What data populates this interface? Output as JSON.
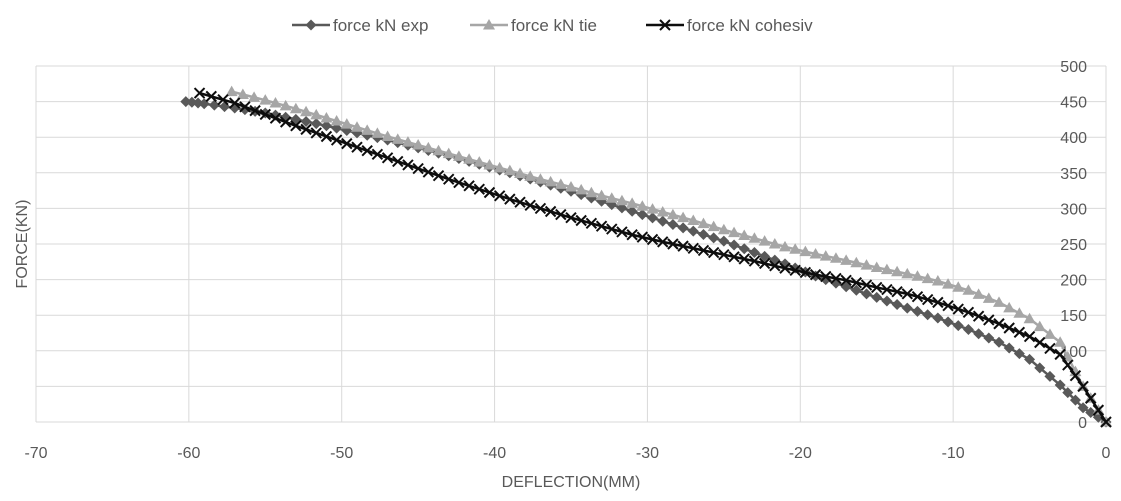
{
  "chart_data": {
    "type": "line",
    "title": "",
    "xlabel": "DEFLECTION(MM)",
    "ylabel": "FORCE(KN)",
    "xlim": [
      -70,
      0
    ],
    "ylim": [
      0,
      500
    ],
    "x_ticks": [
      -70,
      -60,
      -50,
      -40,
      -30,
      -20,
      -10,
      0
    ],
    "y_ticks": [
      0,
      50,
      100,
      150,
      200,
      250,
      300,
      350,
      400,
      450,
      500
    ],
    "x_tick_labels": [
      "-70",
      "-60",
      "-50",
      "-40",
      "-30",
      "-20",
      "-10",
      "0"
    ],
    "y_tick_labels": [
      "0",
      "",
      "100",
      "150",
      "200",
      "250",
      "300",
      "350",
      "400",
      "450",
      "500"
    ],
    "y_axis_side": "right",
    "grid": true,
    "legend_position": "top",
    "series": [
      {
        "name": "force kN exp",
        "color": "#595959",
        "marker": "diamond",
        "points": [
          [
            -60.2,
            450
          ],
          [
            -59,
            447
          ],
          [
            -57,
            441
          ],
          [
            -55,
            434
          ],
          [
            -53,
            425
          ],
          [
            -51,
            416
          ],
          [
            -49,
            406
          ],
          [
            -47,
            396
          ],
          [
            -45,
            385
          ],
          [
            -43,
            374
          ],
          [
            -41,
            362
          ],
          [
            -39,
            350
          ],
          [
            -37,
            337
          ],
          [
            -35,
            324
          ],
          [
            -33,
            310
          ],
          [
            -31,
            296
          ],
          [
            -29,
            282
          ],
          [
            -27,
            268
          ],
          [
            -25,
            254
          ],
          [
            -23,
            238
          ],
          [
            -21,
            222
          ],
          [
            -19,
            205
          ],
          [
            -17,
            190
          ],
          [
            -15,
            175
          ],
          [
            -13,
            160
          ],
          [
            -11,
            146
          ],
          [
            -9,
            130
          ],
          [
            -7,
            112
          ],
          [
            -5,
            88
          ],
          [
            -3,
            52
          ],
          [
            -1.5,
            20
          ],
          [
            0,
            0
          ]
        ]
      },
      {
        "name": "force kN tie",
        "color": "#a6a6a6",
        "marker": "triangle",
        "points": [
          [
            -57.2,
            464
          ],
          [
            -55,
            452
          ],
          [
            -53,
            440
          ],
          [
            -51,
            427
          ],
          [
            -49,
            414
          ],
          [
            -47,
            401
          ],
          [
            -45,
            389
          ],
          [
            -43,
            377
          ],
          [
            -41,
            365
          ],
          [
            -39,
            353
          ],
          [
            -37,
            341
          ],
          [
            -35,
            330
          ],
          [
            -33,
            318
          ],
          [
            -31,
            307
          ],
          [
            -29,
            295
          ],
          [
            -27,
            283
          ],
          [
            -25,
            270
          ],
          [
            -23,
            258
          ],
          [
            -21,
            246
          ],
          [
            -19,
            236
          ],
          [
            -17,
            227
          ],
          [
            -15,
            217
          ],
          [
            -13,
            208
          ],
          [
            -11,
            198
          ],
          [
            -9,
            185
          ],
          [
            -7,
            168
          ],
          [
            -5,
            145
          ],
          [
            -3,
            112
          ],
          [
            -1.5,
            50
          ],
          [
            0,
            0
          ]
        ]
      },
      {
        "name": "force kN cohesiv",
        "color": "#0d0d0d",
        "marker": "x",
        "points": [
          [
            -59.3,
            462
          ],
          [
            -57,
            448
          ],
          [
            -55,
            432
          ],
          [
            -53,
            416
          ],
          [
            -51,
            401
          ],
          [
            -49,
            386
          ],
          [
            -47,
            371
          ],
          [
            -45,
            356
          ],
          [
            -43,
            341
          ],
          [
            -41,
            327
          ],
          [
            -39,
            313
          ],
          [
            -37,
            300
          ],
          [
            -35,
            287
          ],
          [
            -33,
            275
          ],
          [
            -31,
            263
          ],
          [
            -29,
            253
          ],
          [
            -27,
            244
          ],
          [
            -25,
            235
          ],
          [
            -23,
            226
          ],
          [
            -21,
            216
          ],
          [
            -19,
            207
          ],
          [
            -17,
            199
          ],
          [
            -15,
            189
          ],
          [
            -13,
            180
          ],
          [
            -11,
            168
          ],
          [
            -9,
            154
          ],
          [
            -7,
            138
          ],
          [
            -5,
            120
          ],
          [
            -3,
            95
          ],
          [
            -1.5,
            50
          ],
          [
            0,
            0
          ]
        ]
      }
    ]
  }
}
